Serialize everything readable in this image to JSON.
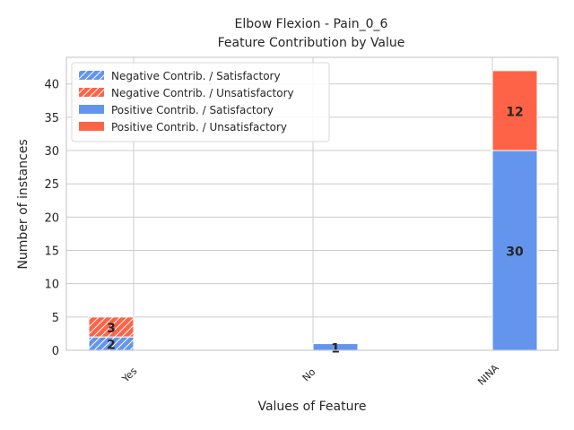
{
  "chart_data": {
    "type": "bar",
    "stacked": true,
    "title": "Elbow Flexion - Pain_0_6",
    "subtitle": "Feature Contribution by Value",
    "xlabel": "Values of Feature",
    "ylabel": "Number of instances",
    "categories": [
      "Yes",
      "No",
      "NINA"
    ],
    "ylim": [
      0,
      44
    ],
    "yticks": [
      0,
      5,
      10,
      15,
      20,
      25,
      30,
      35,
      40
    ],
    "grid": true,
    "legend_position": "top-left",
    "series": [
      {
        "name": "Negative Contrib. / Satisfactory",
        "slot": "negative",
        "hatched": true,
        "color": "#6495ED",
        "values": [
          2,
          0,
          0
        ]
      },
      {
        "name": "Negative Contrib. / Unsatisfactory",
        "slot": "negative",
        "hatched": true,
        "color": "#FF6347",
        "values": [
          3,
          0,
          0
        ]
      },
      {
        "name": "Positive Contrib. / Satisfactory",
        "slot": "positive",
        "hatched": false,
        "color": "#6495ED",
        "values": [
          0,
          1,
          30
        ]
      },
      {
        "name": "Positive Contrib. / Unsatisfactory",
        "slot": "positive",
        "hatched": false,
        "color": "#FF6347",
        "values": [
          0,
          0,
          12
        ]
      }
    ]
  }
}
